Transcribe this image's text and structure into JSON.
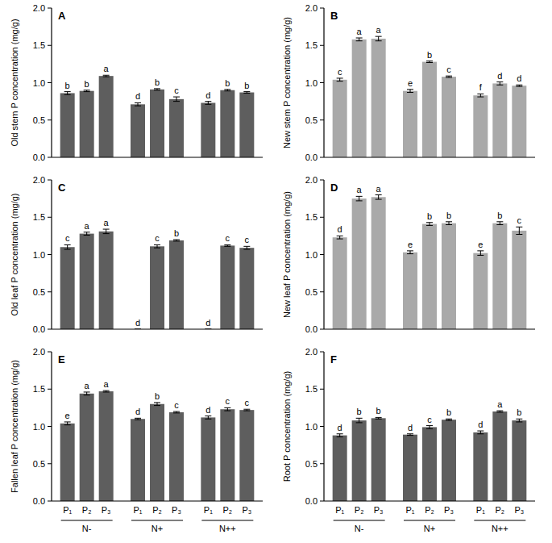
{
  "chart_data": [
    {
      "type": "bar",
      "title": "A",
      "y_label": "Old stem P concentration (mg/g)",
      "color": "#5e5e5e",
      "tick_labels": "y",
      "ylim": [
        0,
        2
      ],
      "yticks": [
        {
          "value": 0,
          "label": "0.0"
        },
        {
          "value": 0.5,
          "label": "0.5"
        },
        {
          "value": 1,
          "label": "1.0"
        },
        {
          "value": 1.5,
          "label": "1.5"
        },
        {
          "value": 2,
          "label": "2.0"
        }
      ],
      "values": [
        0.86,
        0.89,
        1.09,
        0.71,
        0.91,
        0.78,
        0.73,
        0.9,
        0.87
      ],
      "errors": [
        0.02,
        0.01,
        0.01,
        0.02,
        0.01,
        0.03,
        0.02,
        0.01,
        0.01
      ],
      "letters": [
        "b",
        "b",
        "a",
        "d",
        "b",
        "c",
        "d",
        "b",
        "b"
      ]
    },
    {
      "type": "bar",
      "title": "B",
      "y_label": "New stem P concentration (mg/g)",
      "color": "#a9a9a9",
      "tick_labels": "y",
      "ylim": [
        0,
        2
      ],
      "yticks": [
        {
          "value": 0,
          "label": "0.0"
        },
        {
          "value": 0.5,
          "label": "0.5"
        },
        {
          "value": 1,
          "label": "1.0"
        },
        {
          "value": 1.5,
          "label": "1.5"
        },
        {
          "value": 2,
          "label": "2.0"
        }
      ],
      "values": [
        1.04,
        1.58,
        1.59,
        0.89,
        1.28,
        1.08,
        0.83,
        0.99,
        0.96
      ],
      "errors": [
        0.02,
        0.02,
        0.03,
        0.02,
        0.01,
        0.01,
        0.02,
        0.02,
        0.01
      ],
      "letters": [
        "c",
        "a",
        "a",
        "e",
        "b",
        "c",
        "f",
        "d",
        "d"
      ]
    },
    {
      "type": "bar",
      "title": "C",
      "y_label": "Old leaf P concentration (mg/g)",
      "color": "#5e5e5e",
      "tick_labels": "y",
      "ylim": [
        0,
        2
      ],
      "yticks": [
        {
          "value": 0,
          "label": "0.0"
        },
        {
          "value": 0.5,
          "label": "0.5"
        },
        {
          "value": 1,
          "label": "1.0"
        },
        {
          "value": 1.5,
          "label": "1.5"
        },
        {
          "value": 2,
          "label": "2.0"
        }
      ],
      "values": [
        1.1,
        1.28,
        1.31,
        0,
        1.11,
        1.19,
        0,
        1.12,
        1.09
      ],
      "errors": [
        0.03,
        0.02,
        0.03,
        0,
        0.02,
        0.01,
        0,
        0.01,
        0.02
      ],
      "letters": [
        "c",
        "a",
        "a",
        "d",
        "c",
        "b",
        "d",
        "c",
        "c"
      ]
    },
    {
      "type": "bar",
      "title": "D",
      "y_label": "New leaf P concentration (mg/g)",
      "color": "#a9a9a9",
      "tick_labels": "y",
      "ylim": [
        0,
        2
      ],
      "yticks": [
        {
          "value": 0,
          "label": "0.0"
        },
        {
          "value": 0.5,
          "label": "0.5"
        },
        {
          "value": 1,
          "label": "1.0"
        },
        {
          "value": 1.5,
          "label": "1.5"
        },
        {
          "value": 2,
          "label": "2.0"
        }
      ],
      "values": [
        1.23,
        1.75,
        1.77,
        1.03,
        1.41,
        1.42,
        1.02,
        1.42,
        1.32
      ],
      "errors": [
        0.02,
        0.03,
        0.03,
        0.02,
        0.02,
        0.02,
        0.03,
        0.02,
        0.05
      ],
      "letters": [
        "d",
        "a",
        "a",
        "e",
        "b",
        "b",
        "e",
        "b",
        "c"
      ]
    },
    {
      "type": "bar",
      "title": "E",
      "y_label": "Fallen leaf P concentration (mg/g)",
      "color": "#5e5e5e",
      "ylim": [
        0,
        2
      ],
      "yticks": [
        {
          "value": 0,
          "label": "0.0"
        },
        {
          "value": 0.5,
          "label": "0.5"
        },
        {
          "value": 1,
          "label": "1.0"
        },
        {
          "value": 1.5,
          "label": "1.5"
        },
        {
          "value": 2,
          "label": "2.0"
        }
      ],
      "categories": [
        "P₁",
        "P₂",
        "P₃",
        "P₁",
        "P₂",
        "P₃",
        "P₁",
        "P₂",
        "P₃"
      ],
      "groups": [
        "N-",
        "N+",
        "N++"
      ],
      "values": [
        1.04,
        1.44,
        1.47,
        1.1,
        1.3,
        1.19,
        1.12,
        1.23,
        1.22
      ],
      "errors": [
        0.02,
        0.02,
        0.01,
        0.01,
        0.02,
        0.01,
        0.02,
        0.02,
        0.01
      ],
      "letters": [
        "e",
        "a",
        "a",
        "d",
        "b",
        "c",
        "d",
        "c",
        "c"
      ]
    },
    {
      "type": "bar",
      "title": "F",
      "y_label": "Root P concentration (mg/g)",
      "color": "#5e5e5e",
      "ylim": [
        0,
        2
      ],
      "yticks": [
        {
          "value": 0,
          "label": "0.0"
        },
        {
          "value": 0.5,
          "label": "0.5"
        },
        {
          "value": 1,
          "label": "1.0"
        },
        {
          "value": 1.5,
          "label": "1.5"
        },
        {
          "value": 2,
          "label": "2.0"
        }
      ],
      "categories": [
        "P₁",
        "P₂",
        "P₃",
        "P₁",
        "P₂",
        "P₃",
        "P₁",
        "P₂",
        "P₃"
      ],
      "groups": [
        "N-",
        "N+",
        "N++"
      ],
      "values": [
        0.88,
        1.08,
        1.11,
        0.89,
        0.99,
        1.09,
        0.92,
        1.2,
        1.08
      ],
      "errors": [
        0.02,
        0.03,
        0.01,
        0.01,
        0.02,
        0.01,
        0.02,
        0.01,
        0.02
      ],
      "letters": [
        "d",
        "b",
        "b",
        "d",
        "c",
        "b",
        "d",
        "a",
        "b"
      ]
    }
  ]
}
